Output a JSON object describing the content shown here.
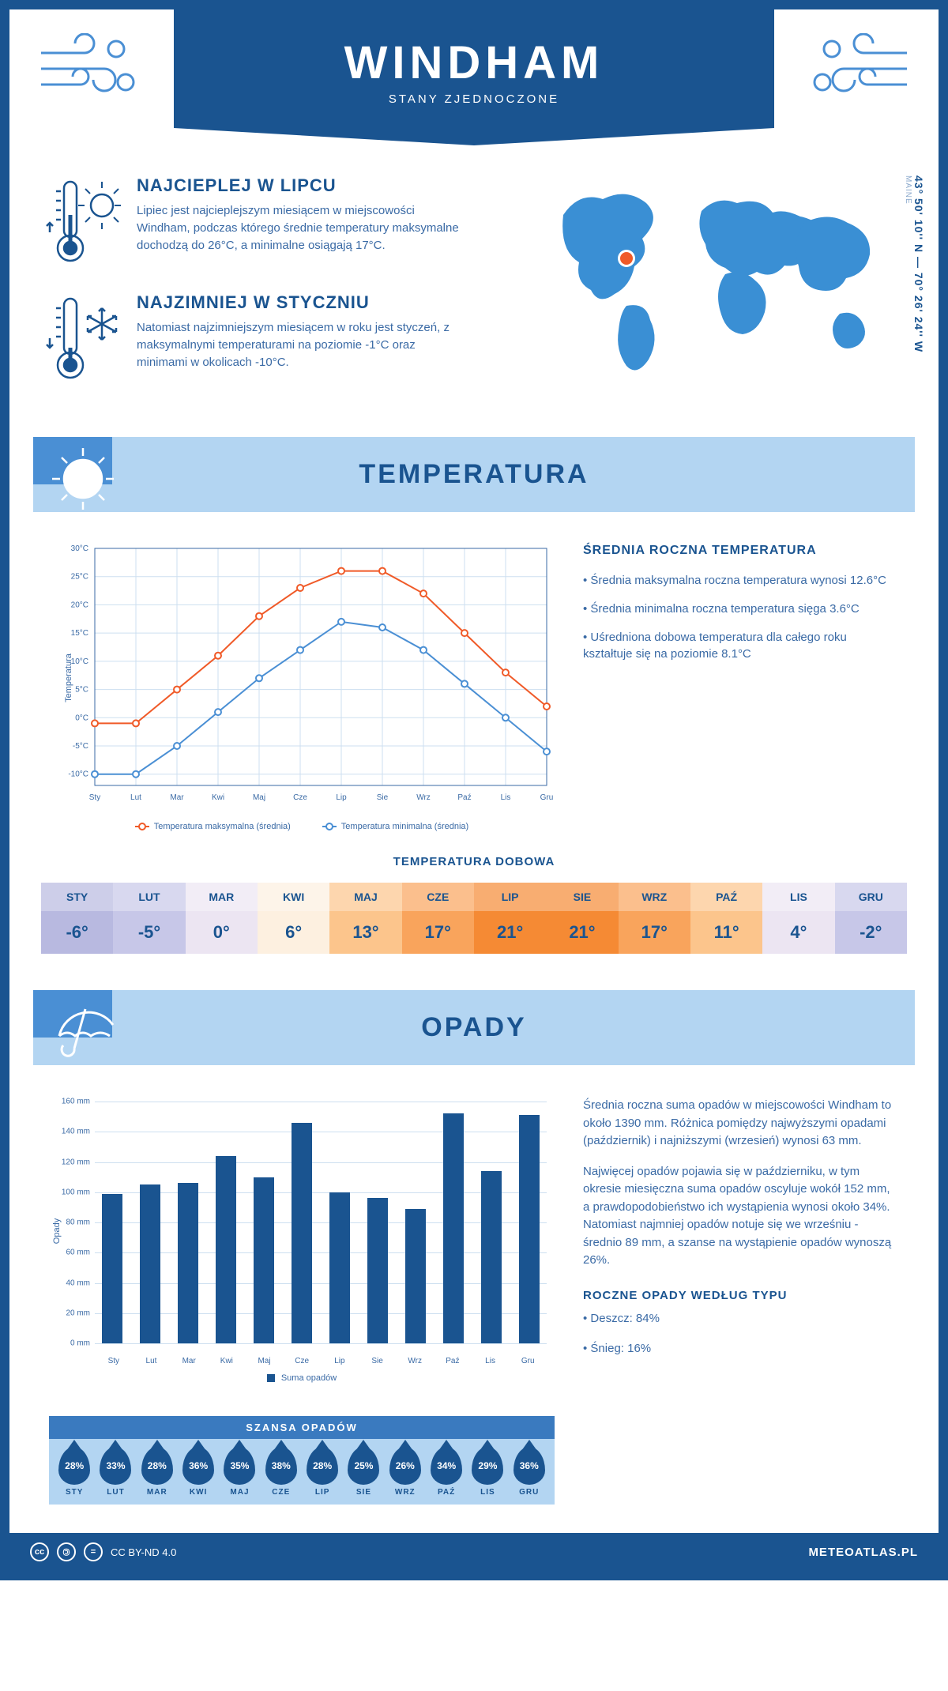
{
  "header": {
    "city": "WINDHAM",
    "country": "STANY ZJEDNOCZONE",
    "region": "MAINE",
    "coordinates": "43° 50' 10'' N — 70° 26' 24'' W"
  },
  "highlights": [
    {
      "title": "NAJCIEPLEJ W LIPCU",
      "text": "Lipiec jest najcieplejszym miesiącem w miejscowości Windham, podczas którego średnie temperatury maksymalne dochodzą do 26°C, a minimalne osiągają 17°C."
    },
    {
      "title": "NAJZIMNIEJ W STYCZNIU",
      "text": "Natomiast najzimniejszym miesiącem w roku jest styczeń, z maksymalnymi temperaturami na poziomie -1°C oraz minimami w okolicach -10°C."
    }
  ],
  "months_short": [
    "Sty",
    "Lut",
    "Mar",
    "Kwi",
    "Maj",
    "Cze",
    "Lip",
    "Sie",
    "Wrz",
    "Paź",
    "Lis",
    "Gru"
  ],
  "months_upper": [
    "STY",
    "LUT",
    "MAR",
    "KWI",
    "MAJ",
    "CZE",
    "LIP",
    "SIE",
    "WRZ",
    "PAŹ",
    "LIS",
    "GRU"
  ],
  "temperature_section": {
    "title": "TEMPERATURA",
    "chart": {
      "type": "line",
      "y_axis_label": "Temperatura",
      "y_ticks": [
        -10,
        -5,
        0,
        5,
        10,
        15,
        20,
        25,
        30
      ],
      "y_tick_labels": [
        "-10°C",
        "-5°C",
        "0°C",
        "5°C",
        "10°C",
        "15°C",
        "20°C",
        "25°C",
        "30°C"
      ],
      "ylim": [
        -12,
        30
      ],
      "series": [
        {
          "name": "Temperatura maksymalna (średnia)",
          "color": "#f05a28",
          "values": [
            -1,
            -1,
            5,
            11,
            18,
            23,
            26,
            26,
            22,
            15,
            8,
            2
          ]
        },
        {
          "name": "Temperatura minimalna (średnia)",
          "color": "#4a8fd4",
          "values": [
            -10,
            -10,
            -5,
            1,
            7,
            12,
            17,
            16,
            12,
            6,
            0,
            -6
          ]
        }
      ],
      "grid_color": "#cddff0",
      "background": "#ffffff",
      "marker_style": "circle",
      "line_width": 2
    },
    "stats_title": "ŚREDNIA ROCZNA TEMPERATURA",
    "stats": [
      "• Średnia maksymalna roczna temperatura wynosi 12.6°C",
      "• Średnia minimalna roczna temperatura sięga 3.6°C",
      "• Uśredniona dobowa temperatura dla całego roku kształtuje się na poziomie 8.1°C"
    ],
    "daily_title": "TEMPERATURA DOBOWA",
    "daily": {
      "values": [
        "-6°",
        "-5°",
        "0°",
        "6°",
        "13°",
        "17°",
        "21°",
        "21°",
        "17°",
        "11°",
        "4°",
        "-2°"
      ],
      "cell_colors": [
        "#b8b9e0",
        "#c7c7e8",
        "#ece5f2",
        "#fdf0e0",
        "#fcc58c",
        "#f9a45c",
        "#f58a34",
        "#f58a34",
        "#f9a45c",
        "#fcc58c",
        "#ece5f2",
        "#c7c7e8"
      ],
      "text_color": "#1a5490"
    }
  },
  "precip_section": {
    "title": "OPADY",
    "chart": {
      "type": "bar",
      "y_axis_label": "Opady",
      "y_ticks": [
        0,
        20,
        40,
        60,
        80,
        100,
        120,
        140,
        160
      ],
      "y_tick_labels": [
        "0 mm",
        "20 mm",
        "40 mm",
        "60 mm",
        "80 mm",
        "100 mm",
        "120 mm",
        "140 mm",
        "160 mm"
      ],
      "ylim": [
        0,
        160
      ],
      "values": [
        99,
        105,
        106,
        124,
        110,
        146,
        100,
        96,
        89,
        152,
        114,
        151
      ],
      "bar_color": "#1a5490",
      "grid_color": "#cddff0",
      "legend_label": "Suma opadów"
    },
    "text": [
      "Średnia roczna suma opadów w miejscowości Windham to około 1390 mm. Różnica pomiędzy najwyższymi opadami (październik) i najniższymi (wrzesień) wynosi 63 mm.",
      "Najwięcej opadów pojawia się w październiku, w tym okresie miesięczna suma opadów oscyluje wokół 152 mm, a prawdopodobieństwo ich wystąpienia wynosi około 34%. Natomiast najmniej opadów notuje się we wrześniu - średnio 89 mm, a szanse na wystąpienie opadów wynoszą 26%."
    ],
    "chance_title": "SZANSA OPADÓW",
    "chance_values": [
      "28%",
      "33%",
      "28%",
      "36%",
      "35%",
      "38%",
      "28%",
      "25%",
      "26%",
      "34%",
      "29%",
      "36%"
    ],
    "type_title": "ROCZNE OPADY WEDŁUG TYPU",
    "type_stats": [
      "• Deszcz: 84%",
      "• Śnieg: 16%"
    ]
  },
  "footer": {
    "license": "CC BY-ND 4.0",
    "site": "METEOATLAS.PL"
  },
  "colors": {
    "primary": "#1a5490",
    "light_blue": "#b3d5f2",
    "mid_blue": "#4a8fd4"
  }
}
